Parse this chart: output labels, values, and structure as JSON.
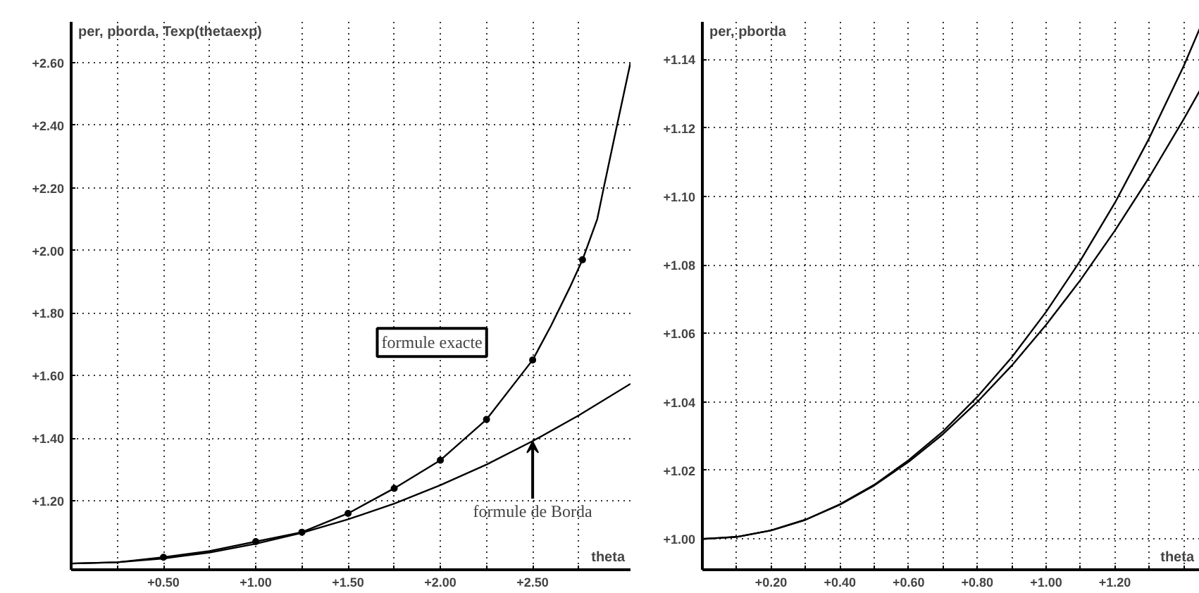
{
  "chart_data": [
    {
      "type": "line",
      "xlabel": "theta",
      "ylabel": "per, pborda, Texp(thetaexp)",
      "xlim": [
        0,
        3.03
      ],
      "ylim": [
        0.98,
        2.73
      ],
      "xticks": [
        {
          "value": 0.25,
          "label": null
        },
        {
          "value": 0.5,
          "label": "+0.50"
        },
        {
          "value": 0.75,
          "label": null
        },
        {
          "value": 1.0,
          "label": "+1.00"
        },
        {
          "value": 1.25,
          "label": null
        },
        {
          "value": 1.5,
          "label": "+1.50"
        },
        {
          "value": 1.75,
          "label": null
        },
        {
          "value": 2.0,
          "label": "+2.00"
        },
        {
          "value": 2.25,
          "label": null
        },
        {
          "value": 2.5,
          "label": "+2.50"
        },
        {
          "value": 2.75,
          "label": null
        }
      ],
      "yticks": [
        {
          "value": 1.2,
          "label": "+1.20"
        },
        {
          "value": 1.4,
          "label": "+1.40"
        },
        {
          "value": 1.6,
          "label": "+1.60"
        },
        {
          "value": 1.8,
          "label": "+1.80"
        },
        {
          "value": 2.0,
          "label": "+2.00"
        },
        {
          "value": 2.2,
          "label": "+2.20"
        },
        {
          "value": 2.4,
          "label": "+2.40"
        },
        {
          "value": 2.6,
          "label": "+2.60"
        }
      ],
      "grid": true,
      "line_style": "solid",
      "marker": "none",
      "series": [
        {
          "color": "#000000",
          "x": [
            0,
            0.25,
            0.5,
            0.75,
            1.0,
            1.25,
            1.5,
            1.75,
            2.0,
            2.25,
            2.5,
            2.6,
            2.7,
            2.77,
            2.85,
            2.885,
            2.95,
            3.03
          ],
          "values": [
            1.0,
            1.004,
            1.02,
            1.04,
            1.07,
            1.1,
            1.16,
            1.24,
            1.33,
            1.46,
            1.65,
            1.76,
            1.88,
            1.97,
            2.1,
            2.2,
            2.38,
            2.6
          ]
        },
        {
          "color": "#000000",
          "x": [
            0,
            0.25,
            0.5,
            0.75,
            1.0,
            1.25,
            1.5,
            1.75,
            2.0,
            2.25,
            2.5,
            2.75,
            3.03
          ],
          "values": [
            1.0,
            1.004,
            1.016,
            1.035,
            1.063,
            1.098,
            1.141,
            1.191,
            1.25,
            1.316,
            1.391,
            1.473,
            1.574
          ]
        },
        {
          "type": "scatter",
          "marker": "circle",
          "color": "#000000",
          "x": [
            0.5,
            1.0,
            1.25,
            1.5,
            1.75,
            2.0,
            2.25,
            2.5,
            2.77
          ],
          "values": [
            1.02,
            1.07,
            1.1,
            1.16,
            1.24,
            1.33,
            1.46,
            1.65,
            1.97
          ]
        }
      ],
      "annotations": [
        "formule exacte",
        {
          "text": "formule de Borda",
          "x": 2.5,
          "y": 1.39
        }
      ]
    },
    {
      "type": "line",
      "xlabel": "theta",
      "ylabel": "per, pborda",
      "xlim": [
        0,
        1.447
      ],
      "ylim": [
        0.991,
        1.151
      ],
      "xticks": [
        {
          "value": 0.1,
          "label": null
        },
        {
          "value": 0.2,
          "label": "+0.20"
        },
        {
          "value": 0.3,
          "label": null
        },
        {
          "value": 0.4,
          "label": "+0.40"
        },
        {
          "value": 0.5,
          "label": null
        },
        {
          "value": 0.6,
          "label": "+0.60"
        },
        {
          "value": 0.7,
          "label": null
        },
        {
          "value": 0.8,
          "label": "+0.80"
        },
        {
          "value": 0.9,
          "label": null
        },
        {
          "value": 1.0,
          "label": "+1.00"
        },
        {
          "value": 1.1,
          "label": null
        },
        {
          "value": 1.2,
          "label": "+1.20"
        },
        {
          "value": 1.3,
          "label": null
        },
        {
          "value": 1.4,
          "label": null
        }
      ],
      "yticks": [
        {
          "value": 1.0,
          "label": "+1.00"
        },
        {
          "value": 1.02,
          "label": "+1.02"
        },
        {
          "value": 1.04,
          "label": "+1.04"
        },
        {
          "value": 1.06,
          "label": "+1.06"
        },
        {
          "value": 1.08,
          "label": "+1.08"
        },
        {
          "value": 1.1,
          "label": "+1.10"
        },
        {
          "value": 1.12,
          "label": "+1.12"
        },
        {
          "value": 1.14,
          "label": "+1.14"
        }
      ],
      "grid": true,
      "line_style": "solid",
      "marker": "none",
      "series": [
        {
          "color": "#000000",
          "x": [
            0,
            0.1,
            0.2,
            0.3,
            0.4,
            0.5,
            0.6,
            0.7,
            0.8,
            0.9,
            1.0,
            1.1,
            1.2,
            1.3,
            1.4,
            1.447
          ],
          "values": [
            1.0,
            1.0006,
            1.0025,
            1.0056,
            1.0101,
            1.0158,
            1.023,
            1.0314,
            1.0415,
            1.053,
            1.0663,
            1.0813,
            1.0981,
            1.117,
            1.138,
            1.149
          ]
        },
        {
          "color": "#000000",
          "x": [
            0,
            0.1,
            0.2,
            0.3,
            0.4,
            0.5,
            0.6,
            0.7,
            0.8,
            0.9,
            1.0,
            1.1,
            1.2,
            1.3,
            1.4,
            1.447
          ],
          "values": [
            1.0,
            1.0006,
            1.0025,
            1.0056,
            1.01,
            1.0156,
            1.0225,
            1.0306,
            1.04,
            1.0506,
            1.0625,
            1.0756,
            1.09,
            1.1056,
            1.1225,
            1.1309
          ]
        }
      ]
    }
  ]
}
